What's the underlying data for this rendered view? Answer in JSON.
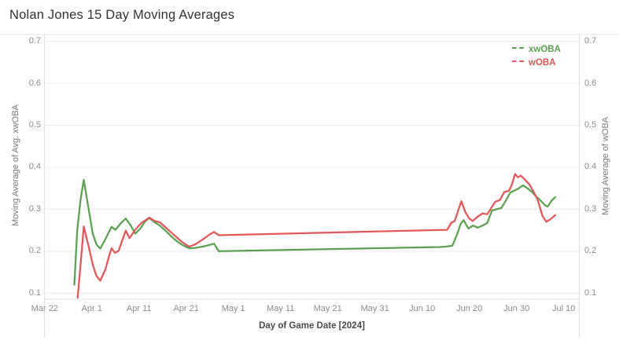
{
  "title": "Nolan Jones 15 Day Moving Averages",
  "colors": {
    "xwoba_line": "#59a14f",
    "woba_line": "#e15759",
    "gridline": "#ececec",
    "axis_border": "#e0e0e0",
    "tick_label": "#8c8c8c",
    "axis_title": "#777777",
    "title_text": "#323232"
  },
  "legend": {
    "items": [
      {
        "label": "xwOBA",
        "color": "#59a14f"
      },
      {
        "label": "wOBA",
        "color": "#e15759"
      }
    ]
  },
  "axes": {
    "left_title": "Moving Average of Avg. xwOBA",
    "right_title": "Moving Average of wOBA",
    "x_title": "Day of Game Date [2024]"
  },
  "chart_data": {
    "type": "line",
    "title": "Nolan Jones 15 Day Moving Averages",
    "xlabel": "Day of Game Date [2024]",
    "ylabel_left": "Moving Average of Avg. xwOBA",
    "ylabel_right": "Moving Average of wOBA",
    "ylim": [
      0.1,
      0.7
    ],
    "grid": "horizontal",
    "legend_position": "top-right-inside",
    "x_unit": "days since Mar 22, 2024",
    "y_ticks": [
      {
        "label": "0.1",
        "value": 0.1
      },
      {
        "label": "0.2",
        "value": 0.2
      },
      {
        "label": "0.3",
        "value": 0.3
      },
      {
        "label": "0.4",
        "value": 0.4
      },
      {
        "label": "0.5",
        "value": 0.5
      },
      {
        "label": "0.6",
        "value": 0.6
      },
      {
        "label": "0.7",
        "value": 0.7
      }
    ],
    "x_ticks": [
      {
        "label": "Mar 22",
        "day": 0
      },
      {
        "label": "Apr 1",
        "day": 10
      },
      {
        "label": "Apr 11",
        "day": 20
      },
      {
        "label": "Apr 21",
        "day": 30
      },
      {
        "label": "May 1",
        "day": 40
      },
      {
        "label": "May 11",
        "day": 50
      },
      {
        "label": "May 21",
        "day": 60
      },
      {
        "label": "May 31",
        "day": 70
      },
      {
        "label": "Jun 10",
        "day": 80
      },
      {
        "label": "Jun 20",
        "day": 90
      },
      {
        "label": "Jun 30",
        "day": 100
      },
      {
        "label": "Jul 10",
        "day": 110
      }
    ],
    "series": [
      {
        "name": "xwOBA",
        "color": "#59a14f",
        "points": [
          [
            6.3,
            0.12
          ],
          [
            6.9,
            0.247
          ],
          [
            7.6,
            0.321
          ],
          [
            8.3,
            0.37
          ],
          [
            9.3,
            0.303
          ],
          [
            10.2,
            0.242
          ],
          [
            11.0,
            0.216
          ],
          [
            11.8,
            0.206
          ],
          [
            12.9,
            0.229
          ],
          [
            14.2,
            0.258
          ],
          [
            15.0,
            0.251
          ],
          [
            16.1,
            0.266
          ],
          [
            17.2,
            0.278
          ],
          [
            18.2,
            0.262
          ],
          [
            19.2,
            0.242
          ],
          [
            20.3,
            0.254
          ],
          [
            21.3,
            0.271
          ],
          [
            22.2,
            0.279
          ],
          [
            23.3,
            0.269
          ],
          [
            24.4,
            0.261
          ],
          [
            25.6,
            0.249
          ],
          [
            26.7,
            0.237
          ],
          [
            27.8,
            0.226
          ],
          [
            28.9,
            0.217
          ],
          [
            30.0,
            0.21
          ],
          [
            30.7,
            0.207
          ],
          [
            32.0,
            0.208
          ],
          [
            33.5,
            0.211
          ],
          [
            35.0,
            0.215
          ],
          [
            35.9,
            0.218
          ],
          [
            36.9,
            0.2
          ],
          [
            84.0,
            0.21
          ],
          [
            85.0,
            0.211
          ],
          [
            86.4,
            0.213
          ],
          [
            87.3,
            0.237
          ],
          [
            88.2,
            0.266
          ],
          [
            88.8,
            0.274
          ],
          [
            89.8,
            0.254
          ],
          [
            90.8,
            0.261
          ],
          [
            91.8,
            0.256
          ],
          [
            92.8,
            0.261
          ],
          [
            93.8,
            0.267
          ],
          [
            94.8,
            0.297
          ],
          [
            95.8,
            0.3
          ],
          [
            96.8,
            0.303
          ],
          [
            97.7,
            0.32
          ],
          [
            98.7,
            0.34
          ],
          [
            99.7,
            0.345
          ],
          [
            100.5,
            0.35
          ],
          [
            101.4,
            0.357
          ],
          [
            102.3,
            0.35
          ],
          [
            103.1,
            0.343
          ],
          [
            104.0,
            0.332
          ],
          [
            105.0,
            0.322
          ],
          [
            106.0,
            0.31
          ],
          [
            106.6,
            0.306
          ],
          [
            107.4,
            0.32
          ],
          [
            108.2,
            0.329
          ]
        ]
      },
      {
        "name": "wOBA",
        "color": "#e15759",
        "points": [
          [
            7.0,
            0.089
          ],
          [
            7.7,
            0.178
          ],
          [
            8.3,
            0.259
          ],
          [
            9.3,
            0.213
          ],
          [
            10.2,
            0.168
          ],
          [
            11.0,
            0.141
          ],
          [
            11.8,
            0.13
          ],
          [
            12.9,
            0.157
          ],
          [
            13.7,
            0.19
          ],
          [
            14.2,
            0.207
          ],
          [
            14.9,
            0.196
          ],
          [
            15.7,
            0.201
          ],
          [
            16.5,
            0.227
          ],
          [
            17.2,
            0.249
          ],
          [
            18.0,
            0.231
          ],
          [
            19.0,
            0.248
          ],
          [
            20.0,
            0.261
          ],
          [
            20.6,
            0.268
          ],
          [
            21.4,
            0.274
          ],
          [
            22.2,
            0.28
          ],
          [
            23.3,
            0.272
          ],
          [
            24.4,
            0.269
          ],
          [
            25.6,
            0.257
          ],
          [
            26.7,
            0.246
          ],
          [
            27.8,
            0.235
          ],
          [
            28.9,
            0.224
          ],
          [
            30.0,
            0.215
          ],
          [
            30.7,
            0.211
          ],
          [
            32.0,
            0.217
          ],
          [
            33.5,
            0.228
          ],
          [
            35.0,
            0.24
          ],
          [
            35.9,
            0.246
          ],
          [
            36.9,
            0.238
          ],
          [
            85.3,
            0.251
          ],
          [
            86.2,
            0.268
          ],
          [
            86.9,
            0.272
          ],
          [
            88.3,
            0.319
          ],
          [
            89.2,
            0.292
          ],
          [
            90.0,
            0.278
          ],
          [
            90.7,
            0.272
          ],
          [
            91.6,
            0.281
          ],
          [
            92.8,
            0.29
          ],
          [
            93.8,
            0.288
          ],
          [
            94.7,
            0.304
          ],
          [
            95.5,
            0.318
          ],
          [
            96.5,
            0.322
          ],
          [
            97.4,
            0.341
          ],
          [
            98.4,
            0.344
          ],
          [
            99.0,
            0.358
          ],
          [
            99.7,
            0.384
          ],
          [
            100.3,
            0.376
          ],
          [
            100.9,
            0.38
          ],
          [
            102.0,
            0.368
          ],
          [
            102.8,
            0.358
          ],
          [
            103.7,
            0.34
          ],
          [
            104.5,
            0.322
          ],
          [
            105.5,
            0.284
          ],
          [
            106.3,
            0.27
          ],
          [
            107.2,
            0.276
          ],
          [
            108.2,
            0.286
          ]
        ]
      }
    ]
  }
}
